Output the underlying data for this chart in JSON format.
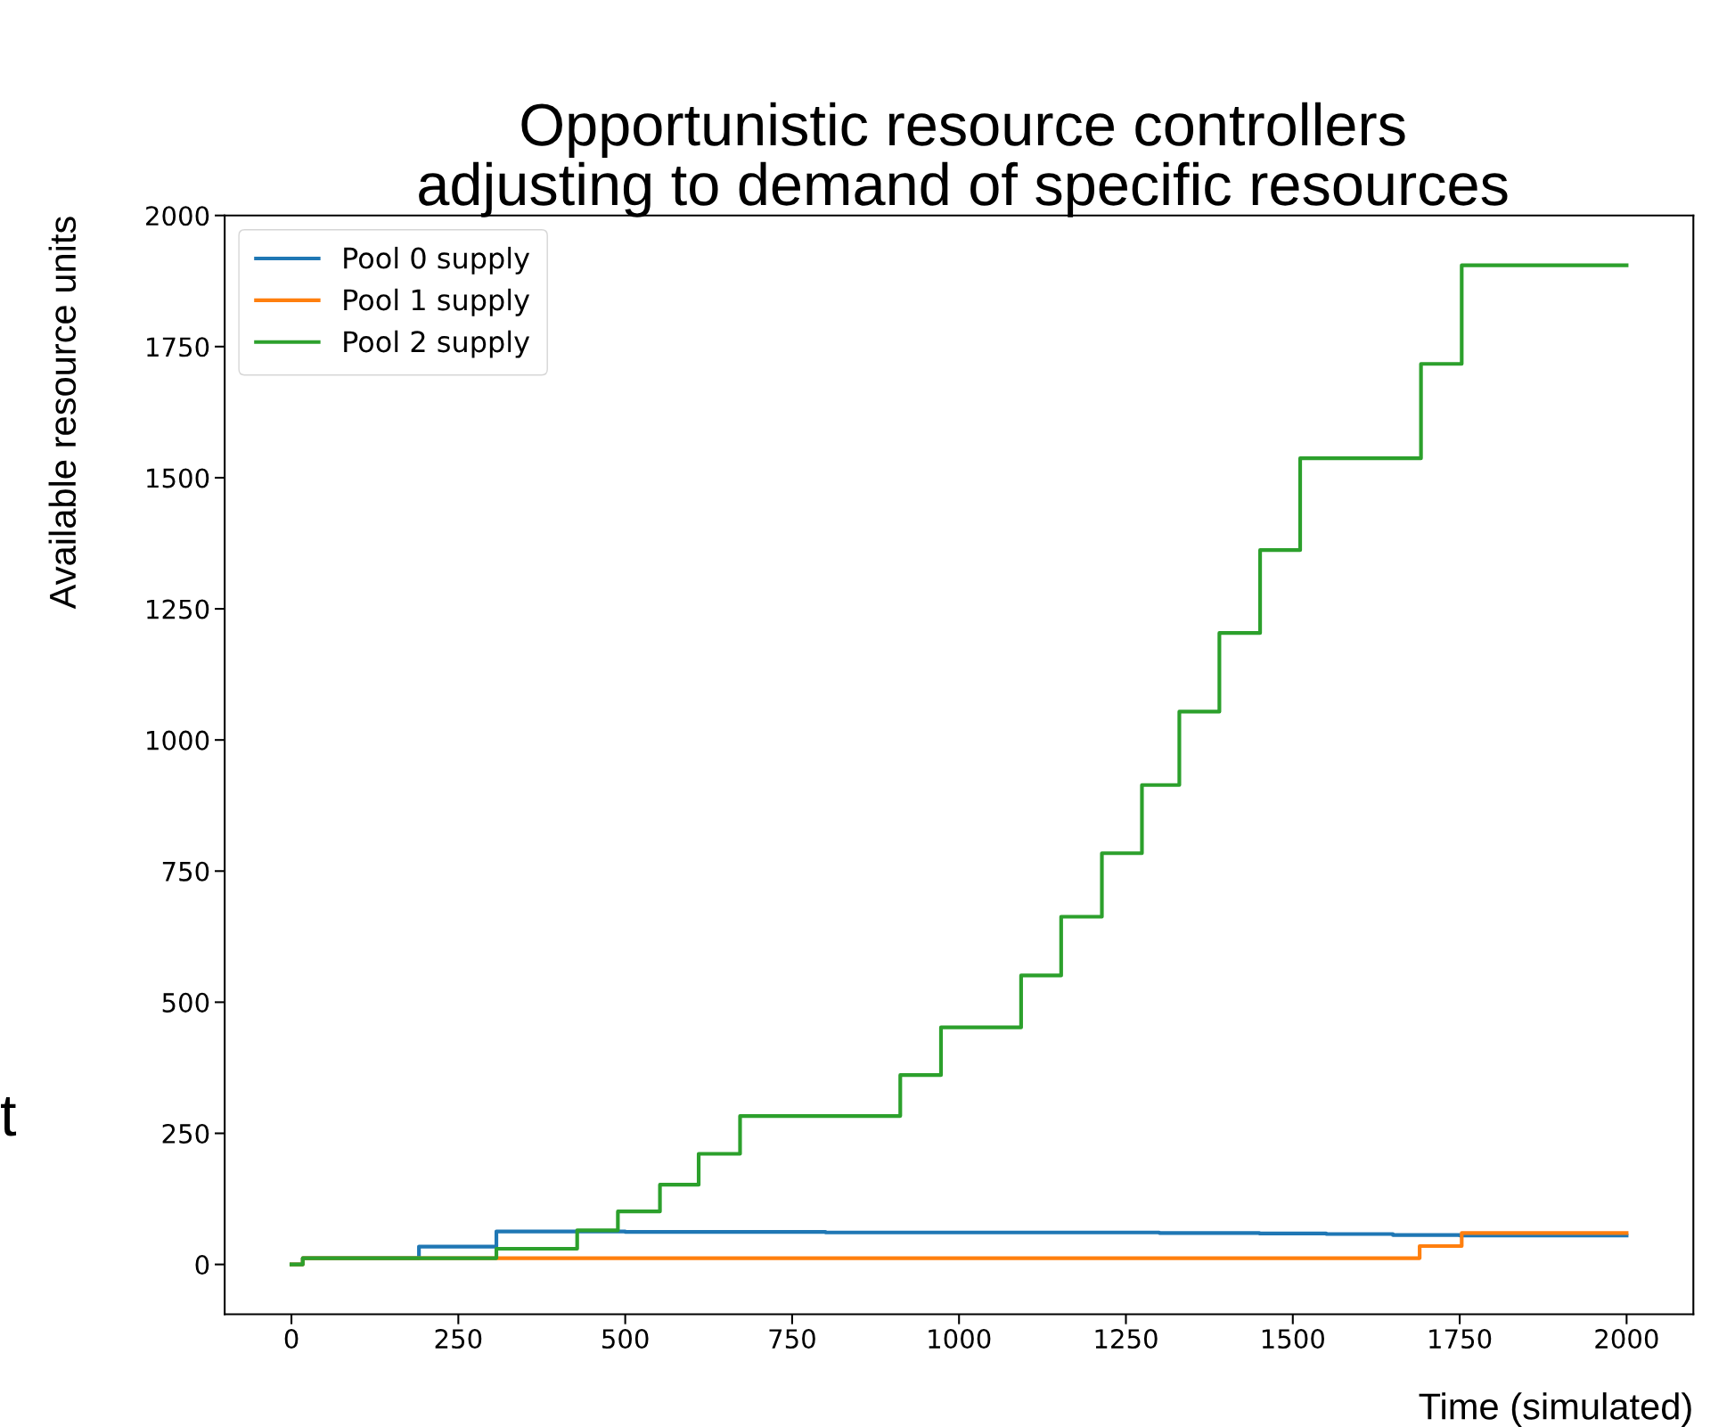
{
  "chart_data": {
    "type": "step",
    "title": "Opportunistic resource controllers\nadjusting to demand of specific resources",
    "xlabel": "Time (simulated)",
    "ylabel": "Available resource units",
    "series": [
      {
        "name": "Pool 0 supply",
        "color": "#1f77b4",
        "x": [
          0,
          17,
          191,
          307,
          500,
          800,
          1100,
          1300,
          1450,
          1550,
          1650,
          1750,
          2000
        ],
        "values": [
          0,
          12,
          34,
          63,
          62,
          61,
          61,
          60,
          59,
          58,
          56,
          55,
          55
        ]
      },
      {
        "name": "Pool 1 supply",
        "color": "#ff7f0e",
        "x": [
          0,
          17,
          1690,
          1753,
          2000
        ],
        "values": [
          0,
          12,
          35,
          60,
          60
        ]
      },
      {
        "name": "Pool 2 supply",
        "color": "#2ca02c",
        "x": [
          0,
          17,
          307,
          428,
          489,
          552,
          610,
          672,
          912,
          973,
          1093,
          1153,
          1214,
          1274,
          1330,
          1390,
          1451,
          1511,
          1692,
          1753,
          2000
        ],
        "values": [
          0,
          12,
          30,
          65,
          101,
          152,
          211,
          283,
          361,
          452,
          551,
          663,
          784,
          914,
          1054,
          1204,
          1362,
          1537,
          1717,
          1905,
          1905
        ]
      }
    ],
    "xlim": [
      -100,
      2100
    ],
    "ylim": [
      -95,
      2000
    ],
    "xticks": [
      0,
      250,
      500,
      750,
      1000,
      1250,
      1500,
      1750,
      2000
    ],
    "yticks": [
      0,
      250,
      500,
      750,
      1000,
      1250,
      1500,
      1750,
      2000
    ],
    "legend": "top left",
    "grid": false,
    "annotations": [
      "t"
    ]
  }
}
